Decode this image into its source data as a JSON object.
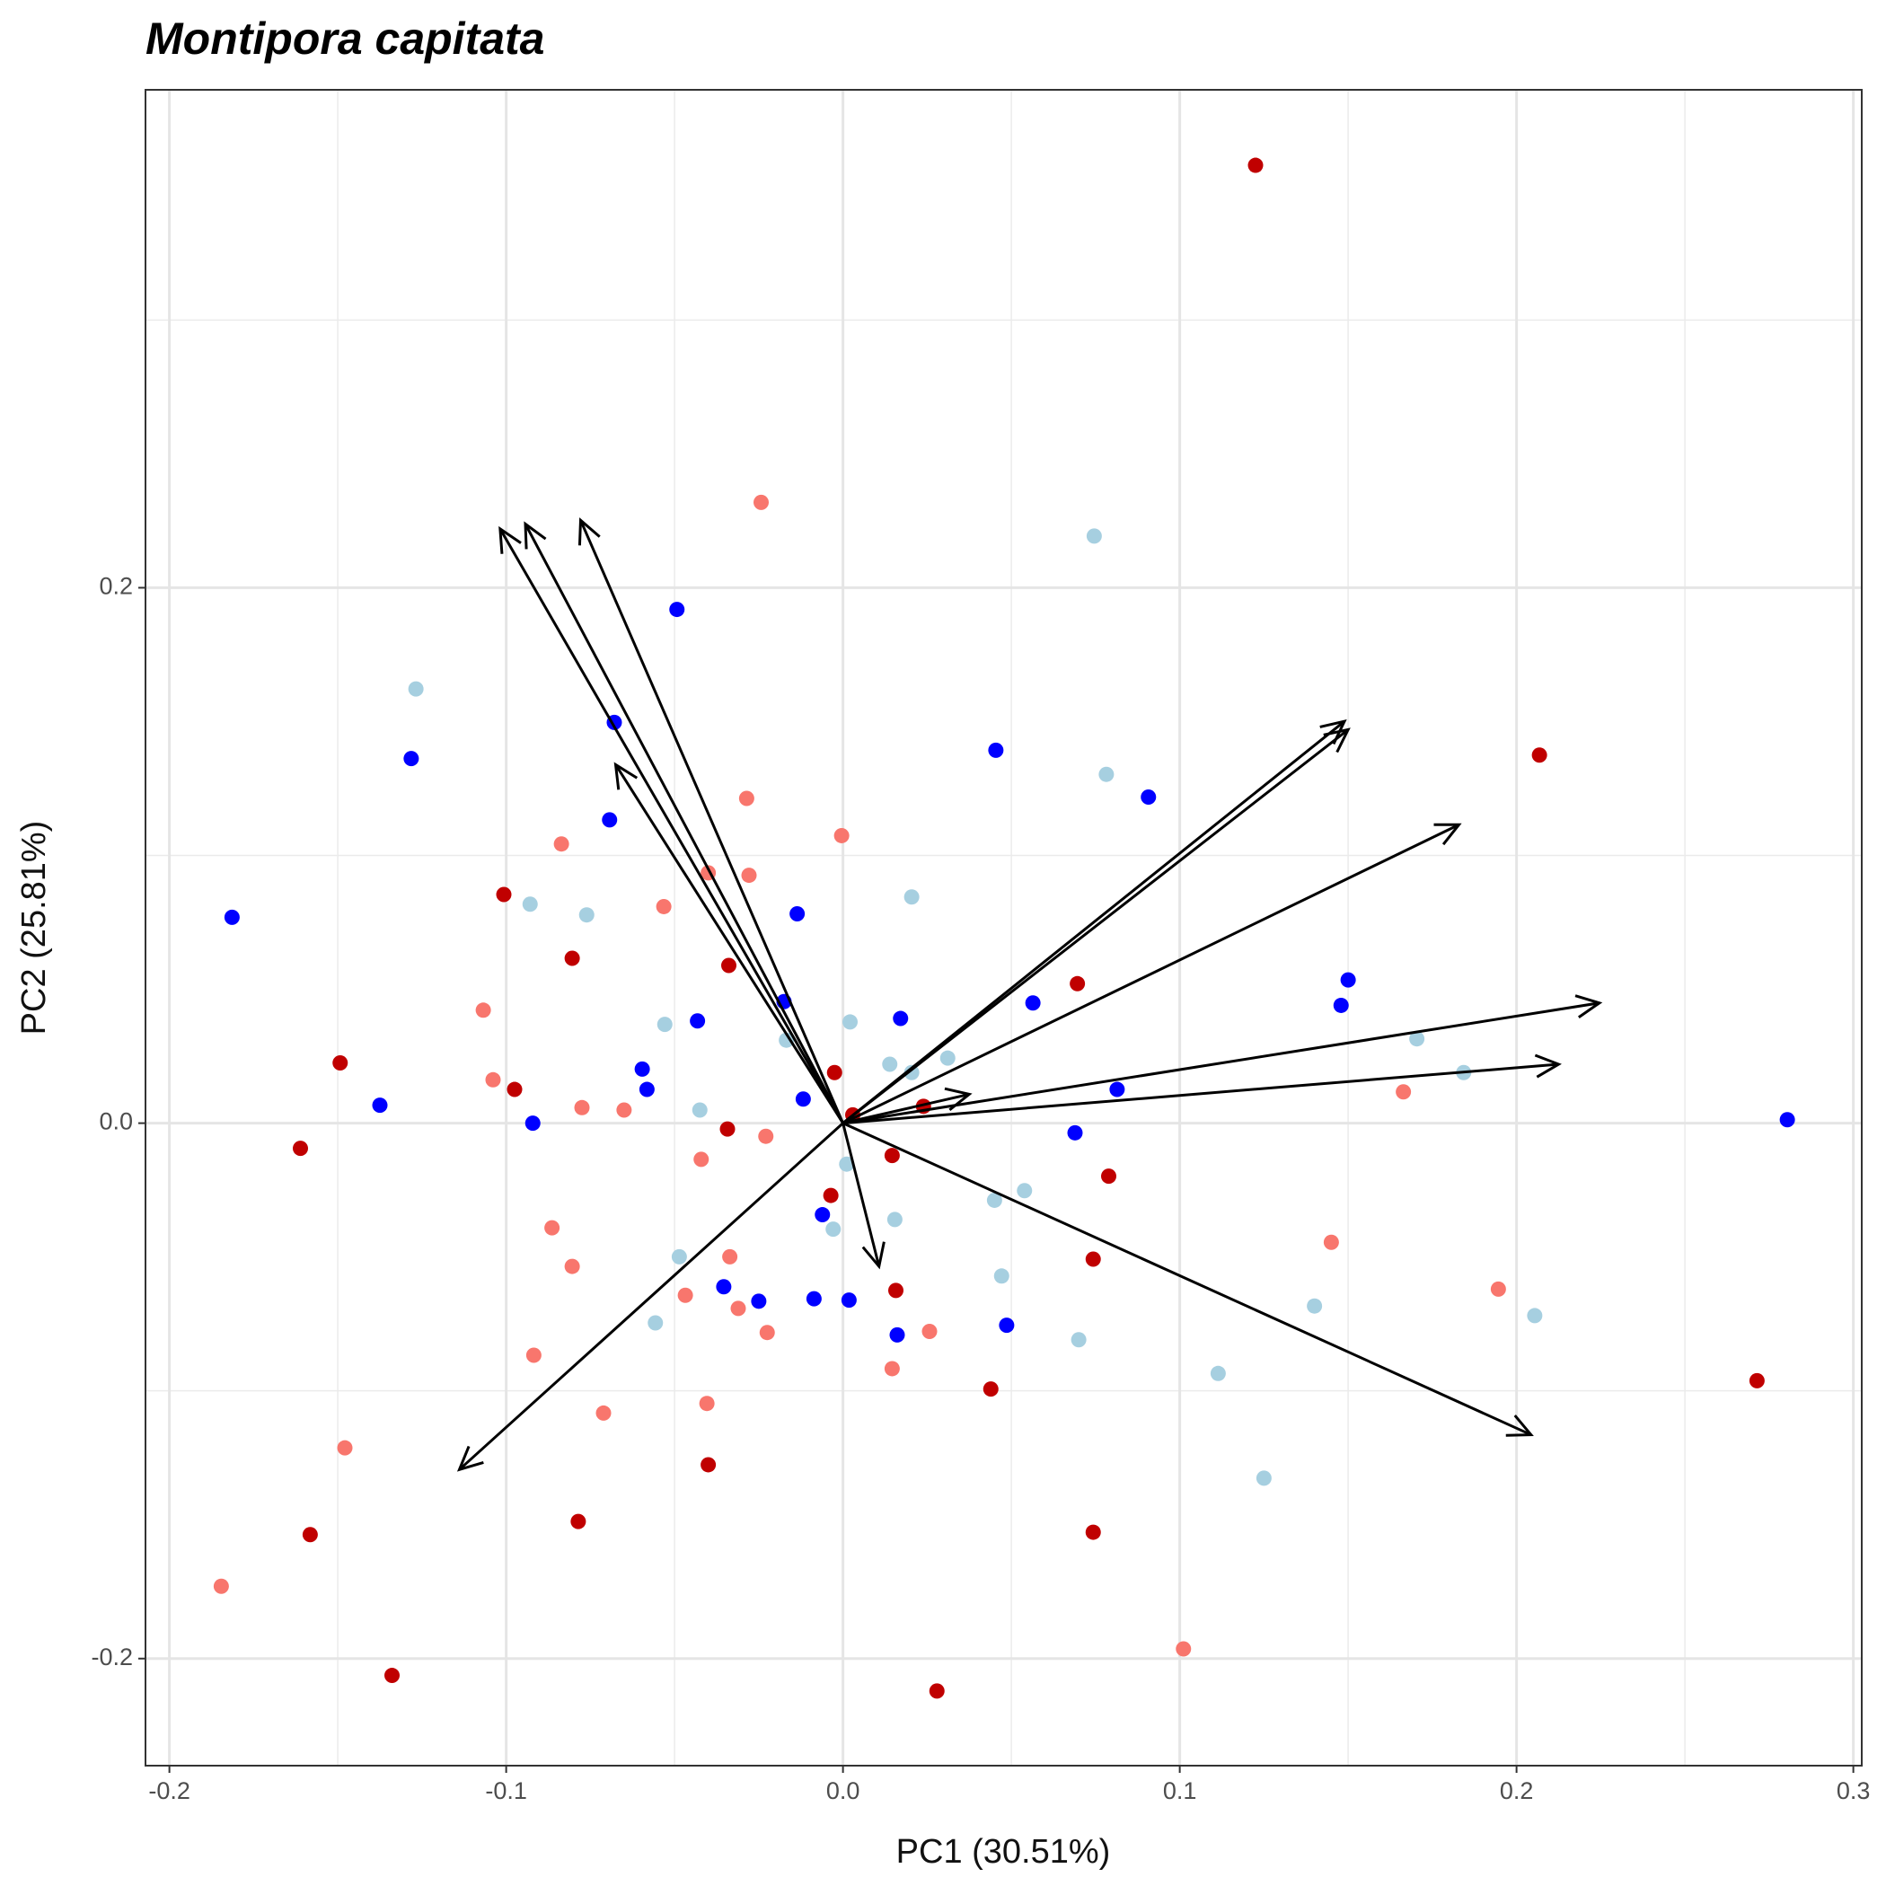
{
  "chart_data": {
    "type": "scatter",
    "title": "Montipora capitata",
    "x_label": "PC1 (30.51%)",
    "y_label": "PC2 (25.81%)",
    "xlim": [
      -0.2071,
      0.3025
    ],
    "ylim": [
      -0.24,
      0.386
    ],
    "xticks": [
      -0.2,
      -0.1,
      {
        "value": 0,
        "label": "0.0"
      },
      0.1,
      0.2,
      0.3
    ],
    "yticks": [
      -0.2,
      {
        "value": 0,
        "label": "0.0"
      },
      0.2
    ],
    "grid": true,
    "series": [
      {
        "color": "#c00000",
        "x": [
          0.1225,
          0.2068,
          0.0696,
          -0.1007,
          -0.0804,
          -0.0339,
          -0.1493,
          -0.0975,
          -0.0025,
          0.0029,
          0.0239,
          -0.0343,
          -0.1611,
          0.0146,
          0.0789,
          -0.0036,
          0.0743,
          0.0157,
          0.2714,
          0.0439,
          -0.04,
          -0.0786,
          0.0743,
          -0.1582,
          -0.1339,
          0.0279
        ],
        "values": [
          0.3578,
          0.1375,
          0.0521,
          0.0854,
          0.0616,
          0.0589,
          0.0225,
          0.0126,
          0.0189,
          0.0031,
          0.0063,
          -0.0022,
          -0.0094,
          -0.0121,
          -0.0198,
          -0.027,
          -0.0508,
          -0.0625,
          -0.0962,
          -0.0993,
          -0.1276,
          -0.1488,
          -0.1528,
          -0.1537,
          -0.2063,
          -0.2121
        ]
      },
      {
        "color": "#f8766d",
        "x": [
          -0.0243,
          -0.0286,
          -0.0004,
          -0.0836,
          -0.04,
          -0.0279,
          -0.0532,
          -0.1068,
          -0.1039,
          -0.0775,
          -0.065,
          0.1664,
          -0.0229,
          -0.0421,
          -0.0864,
          -0.0804,
          -0.0336,
          0.145,
          -0.0468,
          -0.0311,
          0.1946,
          -0.0225,
          0.0257,
          0.0146,
          -0.0918,
          -0.0711,
          -0.0404,
          -0.1479,
          -0.1846,
          0.1011
        ],
        "values": [
          0.2319,
          0.1213,
          0.1074,
          0.1043,
          0.0935,
          0.0926,
          0.0809,
          0.0422,
          0.0162,
          0.0058,
          0.0049,
          0.0117,
          -0.0049,
          -0.0135,
          -0.0391,
          -0.0535,
          -0.0499,
          -0.0445,
          -0.0643,
          -0.0692,
          -0.062,
          -0.0782,
          -0.0778,
          -0.0917,
          -0.0867,
          -0.1083,
          -0.1047,
          -0.1213,
          -0.173,
          -0.1964
        ]
      },
      {
        "color": "#0000ff",
        "x": [
          -0.0493,
          -0.0679,
          -0.1282,
          0.0454,
          0.0907,
          -0.0693,
          -0.1814,
          -0.0136,
          0.15,
          0.1479,
          -0.0175,
          -0.0432,
          0.0171,
          0.0564,
          -0.0596,
          -0.0582,
          0.0814,
          -0.1375,
          -0.0118,
          -0.0921,
          0.2804,
          0.0689,
          -0.0061,
          -0.0354,
          -0.025,
          -0.0086,
          0.0018,
          0.0161,
          0.0486
        ],
        "values": [
          0.1919,
          0.1497,
          0.1362,
          0.1393,
          0.1218,
          0.1133,
          0.0769,
          0.0782,
          0.0535,
          0.044,
          0.0454,
          0.0382,
          0.0391,
          0.0449,
          0.0202,
          0.0126,
          0.0126,
          0.0067,
          0.009,
          0.0,
          0.0013,
          -0.0036,
          -0.0342,
          -0.0611,
          -0.0665,
          -0.0656,
          -0.0661,
          -0.0791,
          -0.0755
        ]
      },
      {
        "color": "#a6cfe0",
        "x": [
          0.0746,
          -0.1268,
          0.0782,
          0.0204,
          -0.0929,
          -0.0761,
          -0.0529,
          0.0021,
          -0.0168,
          0.0311,
          0.0139,
          0.0204,
          0.1704,
          0.1843,
          -0.0425,
          0.0011,
          0.0539,
          0.045,
          0.0154,
          -0.0029,
          -0.0486,
          0.0471,
          0.14,
          -0.0557,
          0.2054,
          0.07,
          0.1114,
          0.125
        ],
        "values": [
          0.2193,
          0.1622,
          0.1303,
          0.0845,
          0.0818,
          0.0778,
          0.0369,
          0.0378,
          0.031,
          0.0243,
          0.022,
          0.0189,
          0.0315,
          0.0189,
          0.0049,
          -0.0153,
          -0.0252,
          -0.0288,
          -0.036,
          -0.0396,
          -0.0499,
          -0.0571,
          -0.0683,
          -0.0746,
          -0.0719,
          -0.0809,
          -0.0935,
          -0.1326
        ]
      }
    ],
    "arrows": {
      "color": "#000000",
      "x": [
        -0.1018,
        -0.0943,
        -0.0779,
        -0.0675,
        0.1489,
        0.15,
        0.1829,
        0.2246,
        0.2125,
        0.0375,
        0.2043,
        0.0107,
        -0.1139
      ],
      "y": [
        0.222,
        0.2238,
        0.2252,
        0.1339,
        0.1501,
        0.147,
        0.1115,
        0.0449,
        0.022,
        0.0108,
        -0.1164,
        -0.0535,
        -0.1294
      ]
    }
  }
}
